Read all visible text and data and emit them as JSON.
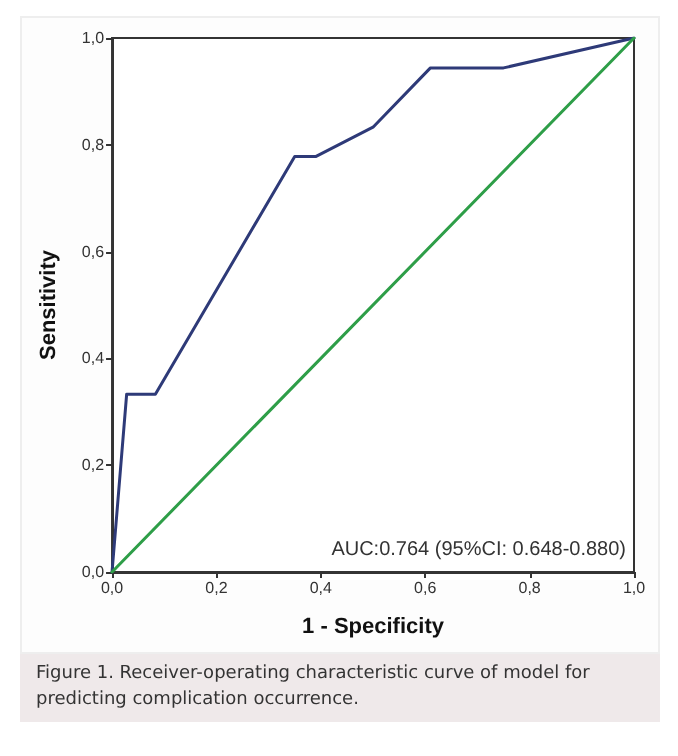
{
  "chart_data": {
    "type": "line",
    "xlabel": "1 - Specificity",
    "ylabel": "Sensitivity",
    "xlim": [
      0,
      1
    ],
    "ylim": [
      0,
      1
    ],
    "xticks": [
      {
        "value": 0,
        "label": "0,0"
      },
      {
        "value": 0.2,
        "label": "0,2"
      },
      {
        "value": 0.4,
        "label": "0,4"
      },
      {
        "value": 0.6,
        "label": "0,6"
      },
      {
        "value": 0.8,
        "label": "0,8"
      },
      {
        "value": 1,
        "label": "1,0"
      }
    ],
    "yticks": [
      {
        "value": 0,
        "label": "0,0"
      },
      {
        "value": 0.2,
        "label": "0,2"
      },
      {
        "value": 0.4,
        "label": "0,4"
      },
      {
        "value": 0.6,
        "label": "0,6"
      },
      {
        "value": 0.8,
        "label": "0,8"
      },
      {
        "value": 1,
        "label": "1,0"
      }
    ],
    "series": [
      {
        "color": "#2e3a78",
        "x": [
          0,
          0.028,
          0.083,
          0.35,
          0.39,
          0.5,
          0.61,
          0.75,
          1
        ],
        "values": [
          0,
          0.333,
          0.333,
          0.778,
          0.778,
          0.833,
          0.944,
          0.944,
          1
        ]
      },
      {
        "color": "#2e9e48",
        "x": [
          0,
          1
        ],
        "values": [
          0,
          1
        ]
      }
    ],
    "annotations": [
      "AUC:0.764 (95%CI: 0.648-0.880)",
      "Figure 1. Receiver-operating characteristic curve of model for predicting complication occurrence."
    ],
    "grid": false,
    "marker": "none",
    "line_style": "solid"
  }
}
